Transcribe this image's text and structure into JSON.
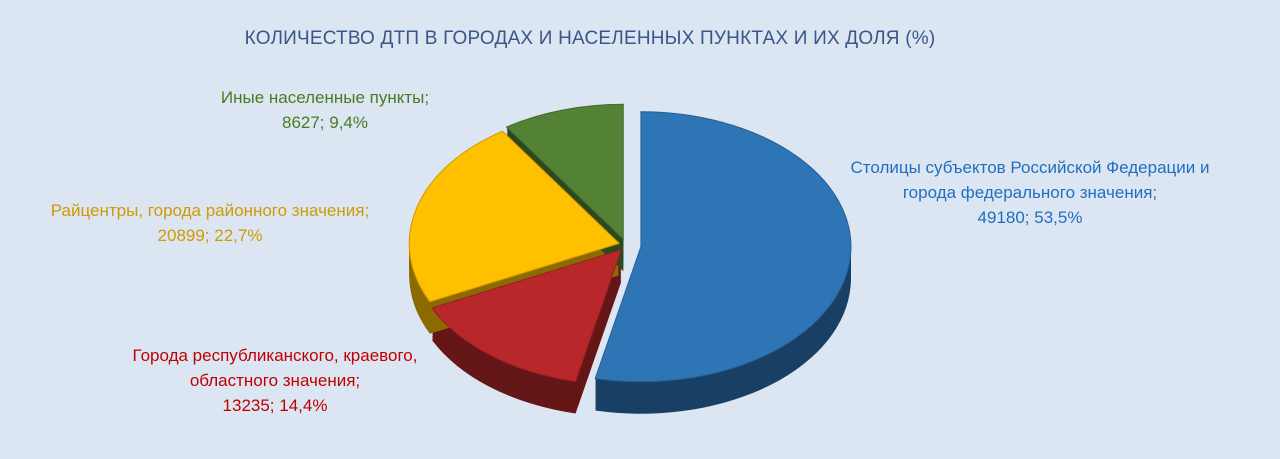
{
  "chart_data": {
    "type": "pie",
    "title": "КОЛИЧЕСТВО ДТП В ГОРОДАХ И НАСЕЛЕННЫХ ПУНКТАХ И ИХ ДОЛЯ (%)",
    "categories": [
      "Столицы субъектов Российской Федерации и города федерального значения;",
      "Города республиканского, краевого, областного значения;",
      "Райцентры, города районного значения;",
      "Иные населенные пункты;"
    ],
    "values": [
      49180,
      13235,
      20899,
      8627
    ],
    "value_labels": [
      "49180; 53,5%",
      "13235; 14,4%",
      "20899; 22,7%",
      "8627; 9,4%"
    ],
    "colors": [
      "#2e75b6",
      "#b8282a",
      "#ffc000",
      "#548235"
    ],
    "label_colors": [
      "#1f6fc0",
      "#c00000",
      "#d09a00",
      "#4a7a22"
    ]
  }
}
